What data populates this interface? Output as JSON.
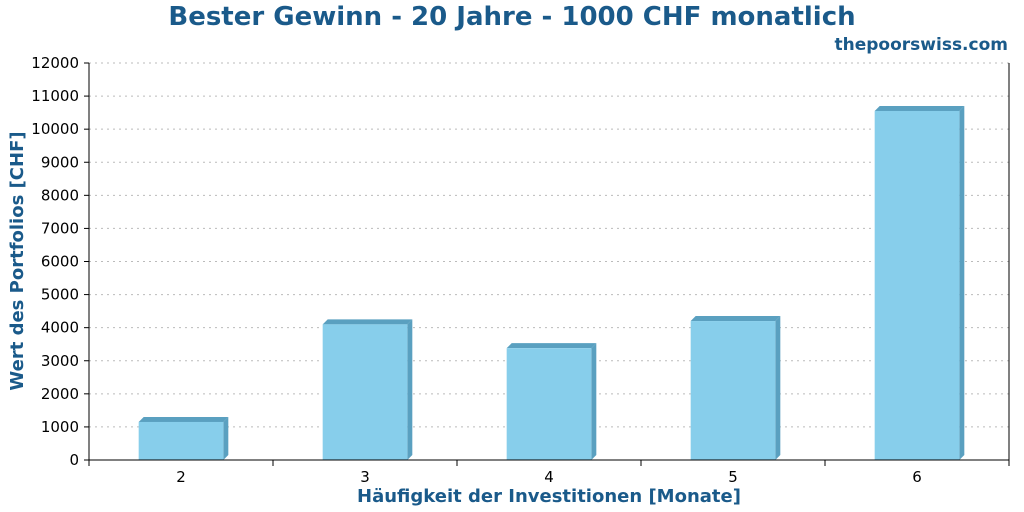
{
  "chart_data": {
    "type": "bar",
    "title": "Bester Gewinn - 20 Jahre - 1000 CHF monatlich",
    "credit": "thepoorswiss.com",
    "xlabel": "Häufigkeit der Investitionen [Monate]",
    "ylabel": "Wert des Portfolios [CHF]",
    "categories": [
      "2",
      "3",
      "4",
      "5",
      "6"
    ],
    "values": [
      1150,
      4100,
      3380,
      4200,
      10550
    ],
    "ylim": [
      0,
      12000
    ],
    "yticks": [
      "0",
      "1000",
      "2000",
      "3000",
      "4000",
      "5000",
      "6000",
      "7000",
      "8000",
      "9000",
      "10000",
      "11000",
      "12000"
    ],
    "grid": true,
    "colors": {
      "bar": "#87ceeb",
      "bar_side": "#5aa0c0",
      "text": "#1a5a8a",
      "grid": "#bbbbbb"
    }
  }
}
